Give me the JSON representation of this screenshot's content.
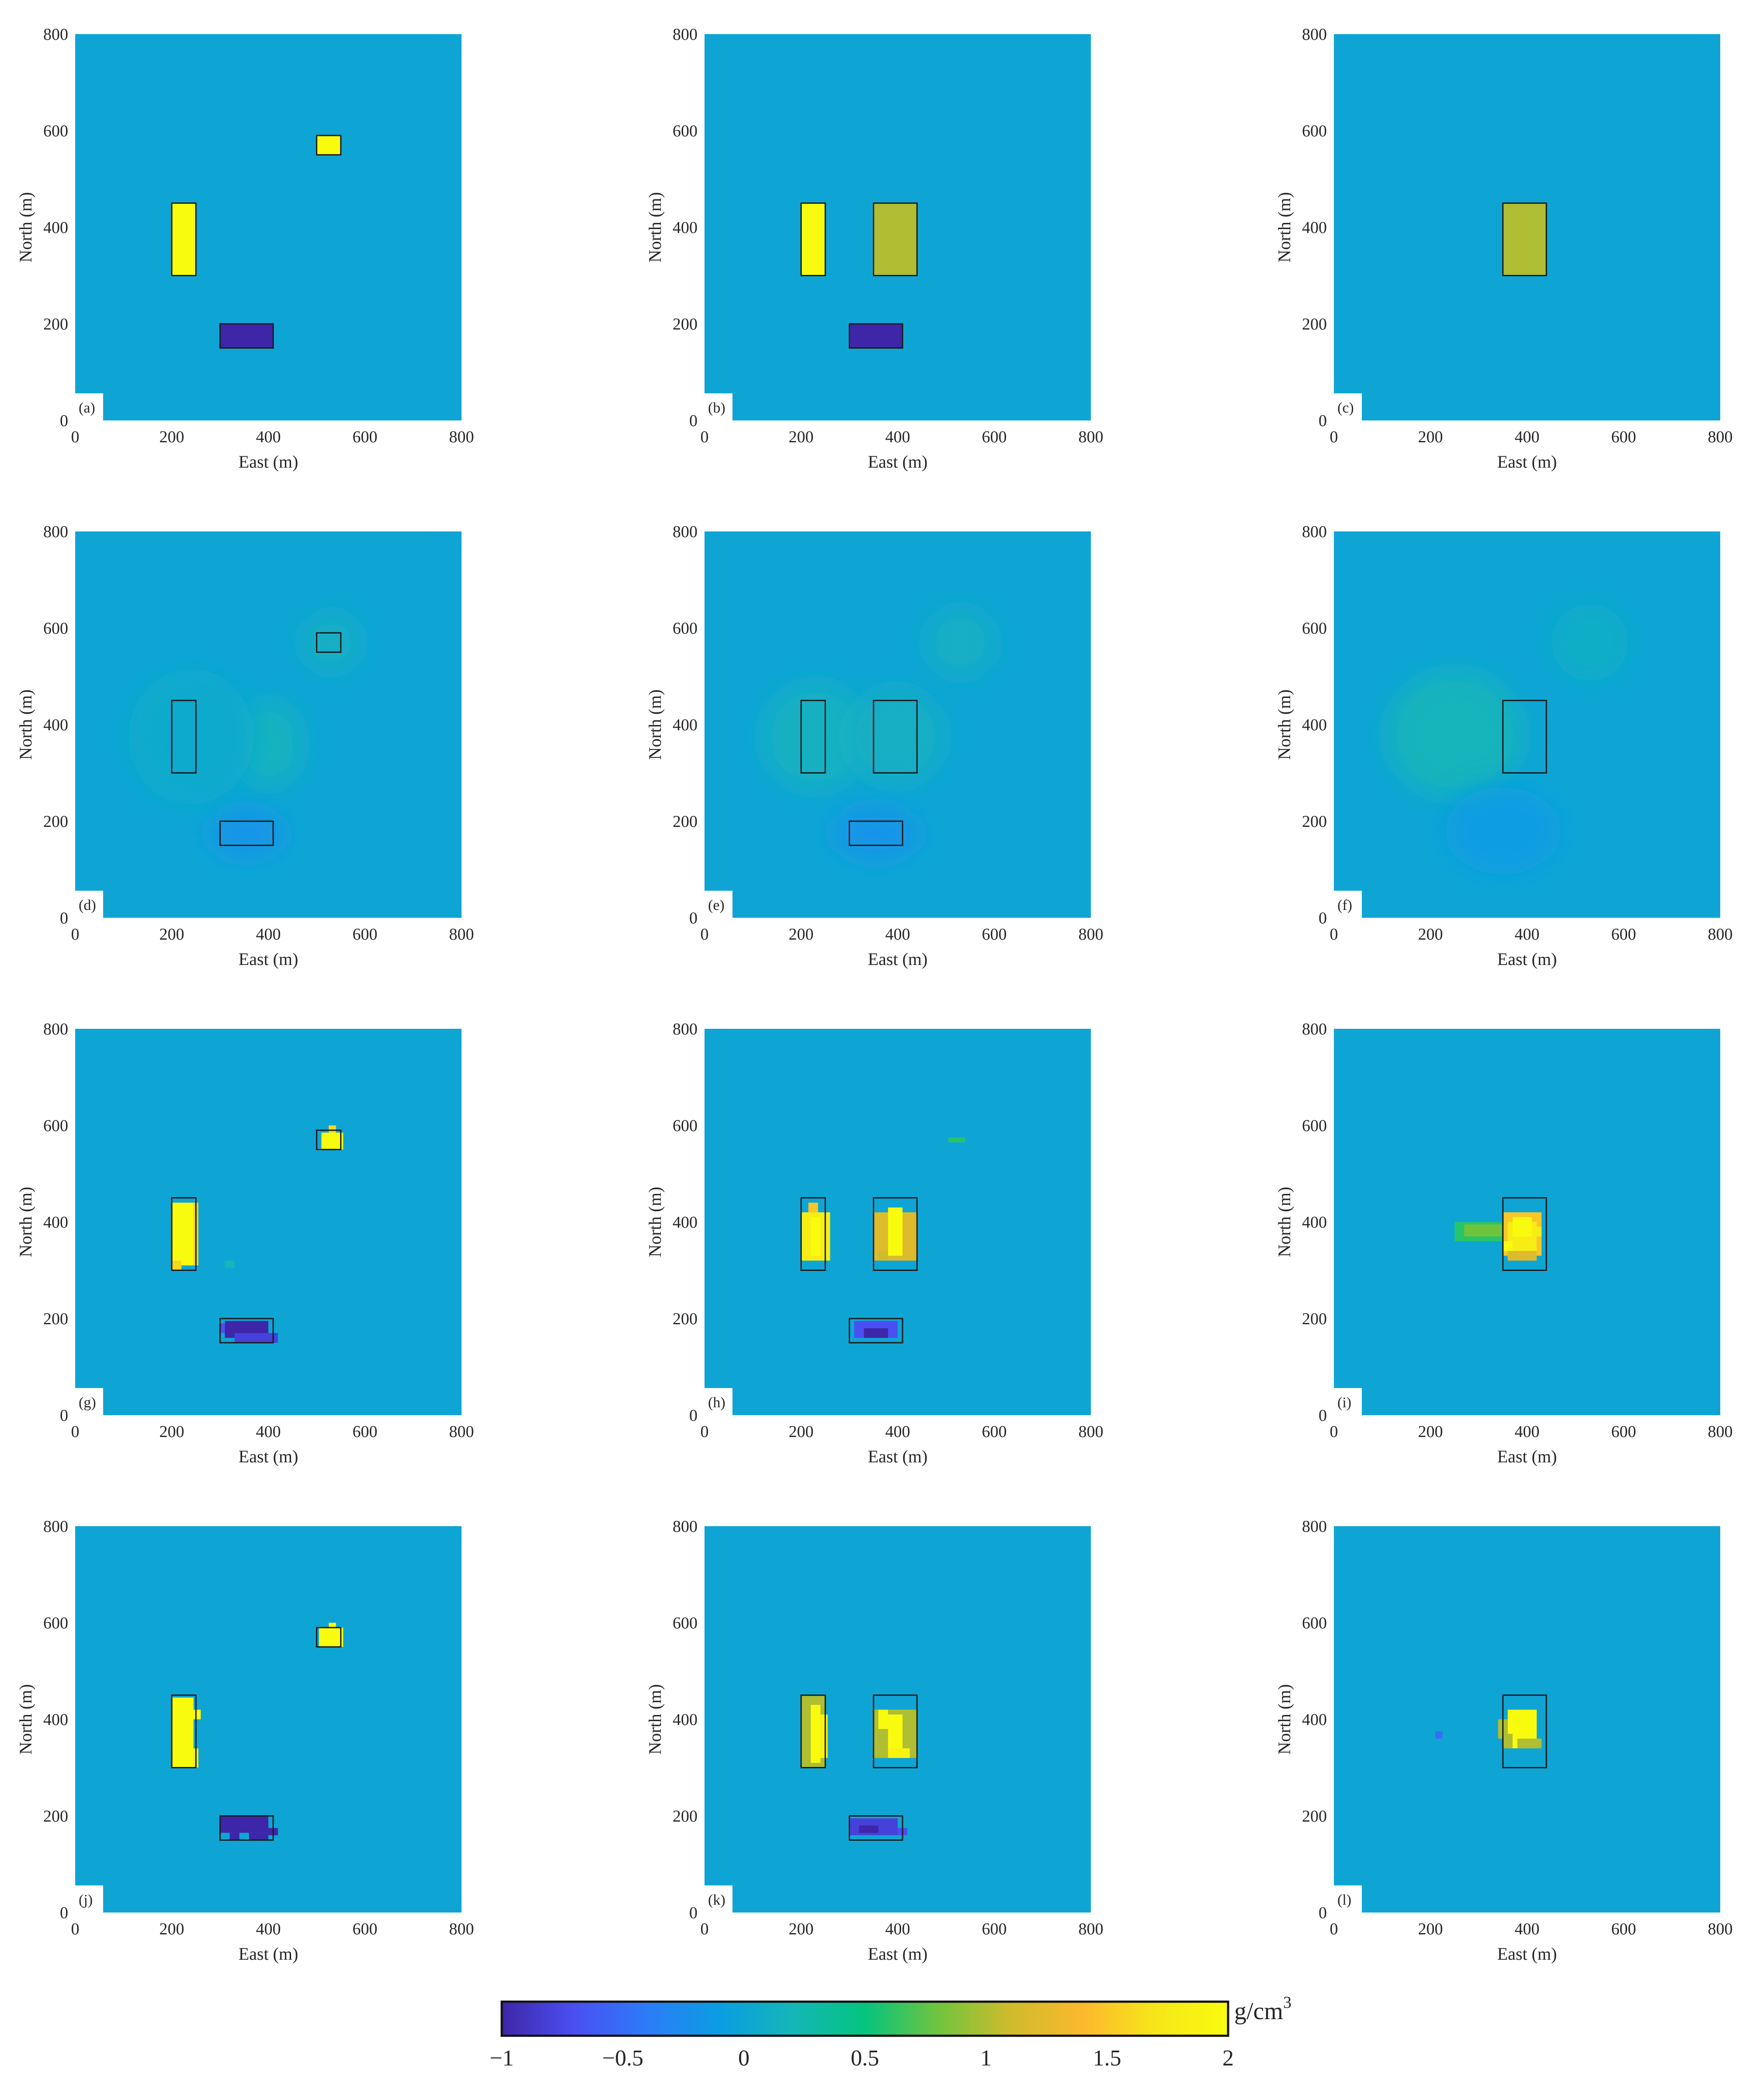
{
  "chart_data": {
    "type": "heatmap",
    "xlabel": "East (m)",
    "ylabel": "North (m)",
    "xlim": [
      0,
      800
    ],
    "ylim": [
      0,
      800
    ],
    "xticks": [
      "0",
      "200",
      "400",
      "600",
      "800"
    ],
    "yticks": [
      "0",
      "200",
      "400",
      "600",
      "800"
    ],
    "background_value": 0,
    "colorbar": {
      "range": [
        -1,
        2
      ],
      "ticks": [
        "−1",
        "−0.5",
        "0",
        "0.5",
        "1",
        "1.5",
        "2"
      ],
      "unit": "g/cm",
      "unit_superscript": "3",
      "colors": [
        "#3e26a8",
        "#4a4ff2",
        "#2c7cf8",
        "#0b9de3",
        "#14b6b8",
        "#04c47e",
        "#6fc43e",
        "#cfbb2c",
        "#fcb82e",
        "#f6e619",
        "#f9fb0e"
      ]
    },
    "panels": [
      {
        "label": "(a)",
        "outlines": [
          [
            200,
            300,
            250,
            450
          ],
          [
            500,
            550,
            550,
            590
          ],
          [
            300,
            150,
            410,
            200
          ]
        ],
        "blocks": [
          [
            200,
            300,
            250,
            450,
            2
          ],
          [
            500,
            550,
            550,
            590,
            2
          ],
          [
            300,
            150,
            410,
            200,
            -1
          ]
        ]
      },
      {
        "label": "(b)",
        "outlines": [
          [
            200,
            300,
            250,
            450
          ],
          [
            350,
            300,
            440,
            450
          ],
          [
            300,
            150,
            410,
            200
          ]
        ],
        "blocks": [
          [
            200,
            300,
            250,
            450,
            2
          ],
          [
            350,
            300,
            440,
            450,
            1
          ],
          [
            300,
            150,
            410,
            200,
            -1
          ]
        ]
      },
      {
        "label": "(c)",
        "outlines": [
          [
            350,
            300,
            440,
            450
          ]
        ],
        "blocks": [
          [
            350,
            300,
            440,
            450,
            1
          ]
        ]
      },
      {
        "label": "(d)",
        "outlines": [
          [
            200,
            300,
            250,
            450
          ],
          [
            500,
            550,
            550,
            590
          ],
          [
            300,
            150,
            410,
            200
          ]
        ],
        "blobs": [
          [
            215,
            375,
            75,
            100,
            0.18
          ],
          [
            400,
            360,
            70,
            90,
            0.15
          ],
          [
            530,
            570,
            60,
            60,
            0.12
          ],
          [
            355,
            175,
            80,
            50,
            -0.18
          ],
          [
            240,
            375,
            130,
            140,
            0.05
          ]
        ]
      },
      {
        "label": "(e)",
        "outlines": [
          [
            200,
            300,
            250,
            450
          ],
          [
            350,
            300,
            440,
            450
          ],
          [
            300,
            150,
            410,
            200
          ]
        ],
        "blobs": [
          [
            230,
            375,
            110,
            110,
            0.14
          ],
          [
            395,
            375,
            100,
            100,
            0.12
          ],
          [
            530,
            570,
            70,
            70,
            0.12
          ],
          [
            355,
            175,
            90,
            55,
            -0.18
          ]
        ]
      },
      {
        "label": "(f)",
        "outlines": [
          [
            350,
            300,
            440,
            450
          ]
        ],
        "blobs": [
          [
            250,
            380,
            140,
            130,
            0.18
          ],
          [
            530,
            570,
            80,
            80,
            0.1
          ],
          [
            350,
            180,
            120,
            90,
            -0.1
          ]
        ]
      },
      {
        "label": "(g)",
        "outlines": [
          [
            200,
            300,
            250,
            450
          ],
          [
            500,
            550,
            550,
            590
          ],
          [
            300,
            150,
            410,
            200
          ]
        ],
        "blocks": [
          [
            200,
            310,
            245,
            440,
            2
          ],
          [
            245,
            310,
            255,
            440,
            1.6
          ],
          [
            200,
            300,
            220,
            320,
            1.6
          ],
          [
            510,
            550,
            555,
            585,
            2
          ],
          [
            525,
            585,
            540,
            600,
            1.6
          ],
          [
            310,
            160,
            400,
            195,
            -1
          ],
          [
            330,
            150,
            420,
            170,
            -0.8
          ],
          [
            300,
            170,
            310,
            190,
            -0.7
          ],
          [
            310,
            305,
            330,
            320,
            0.2
          ]
        ]
      },
      {
        "label": "(h)",
        "outlines": [
          [
            200,
            300,
            250,
            450
          ],
          [
            350,
            300,
            440,
            450
          ],
          [
            300,
            150,
            410,
            200
          ]
        ],
        "blocks": [
          [
            200,
            320,
            260,
            420,
            1.8
          ],
          [
            220,
            330,
            240,
            410,
            2
          ],
          [
            215,
            420,
            235,
            440,
            1.5
          ],
          [
            350,
            320,
            440,
            420,
            1.2
          ],
          [
            380,
            330,
            410,
            430,
            2
          ],
          [
            360,
            320,
            380,
            340,
            1.1
          ],
          [
            310,
            160,
            400,
            195,
            -0.7
          ],
          [
            330,
            160,
            380,
            180,
            -1
          ],
          [
            505,
            565,
            540,
            575,
            0.6
          ]
        ]
      },
      {
        "label": "(i)",
        "outlines": [
          [
            350,
            300,
            440,
            450
          ]
        ],
        "blocks": [
          [
            250,
            360,
            360,
            400,
            0.6
          ],
          [
            270,
            370,
            350,
            395,
            0.8
          ],
          [
            350,
            330,
            430,
            420,
            1.5
          ],
          [
            360,
            340,
            420,
            400,
            1.8
          ],
          [
            370,
            370,
            410,
            410,
            2
          ],
          [
            350,
            340,
            370,
            360,
            2
          ],
          [
            360,
            320,
            420,
            340,
            1.2
          ],
          [
            410,
            370,
            430,
            390,
            1.8
          ]
        ]
      },
      {
        "label": "(j)",
        "outlines": [
          [
            200,
            300,
            250,
            450
          ],
          [
            500,
            550,
            550,
            590
          ],
          [
            300,
            150,
            410,
            200
          ]
        ],
        "blocks": [
          [
            200,
            300,
            245,
            445,
            2
          ],
          [
            240,
            400,
            260,
            420,
            2
          ],
          [
            245,
            300,
            255,
            340,
            1.9
          ],
          [
            505,
            550,
            555,
            590,
            2
          ],
          [
            525,
            590,
            540,
            600,
            2
          ],
          [
            300,
            165,
            400,
            200,
            -1
          ],
          [
            320,
            150,
            340,
            165,
            -1
          ],
          [
            360,
            150,
            400,
            165,
            -1
          ],
          [
            400,
            160,
            420,
            175,
            -1
          ]
        ]
      },
      {
        "label": "(k)",
        "outlines": [
          [
            200,
            300,
            250,
            450
          ],
          [
            350,
            300,
            440,
            450
          ],
          [
            300,
            150,
            410,
            200
          ]
        ],
        "blocks": [
          [
            200,
            300,
            250,
            450,
            1
          ],
          [
            220,
            310,
            240,
            430,
            2
          ],
          [
            240,
            320,
            255,
            410,
            1.9
          ],
          [
            350,
            320,
            440,
            420,
            1
          ],
          [
            380,
            330,
            410,
            410,
            2
          ],
          [
            380,
            320,
            425,
            340,
            1.9
          ],
          [
            360,
            380,
            380,
            420,
            2
          ],
          [
            300,
            160,
            400,
            195,
            -0.8
          ],
          [
            320,
            165,
            360,
            180,
            -1
          ],
          [
            400,
            160,
            420,
            175,
            -0.7
          ]
        ]
      },
      {
        "label": "(l)",
        "outlines": [
          [
            350,
            300,
            440,
            450
          ]
        ],
        "blocks": [
          [
            360,
            340,
            420,
            420,
            2
          ],
          [
            350,
            340,
            370,
            370,
            1
          ],
          [
            340,
            360,
            360,
            400,
            1
          ],
          [
            380,
            340,
            430,
            360,
            1
          ],
          [
            210,
            360,
            225,
            375,
            -0.5
          ]
        ]
      }
    ]
  }
}
